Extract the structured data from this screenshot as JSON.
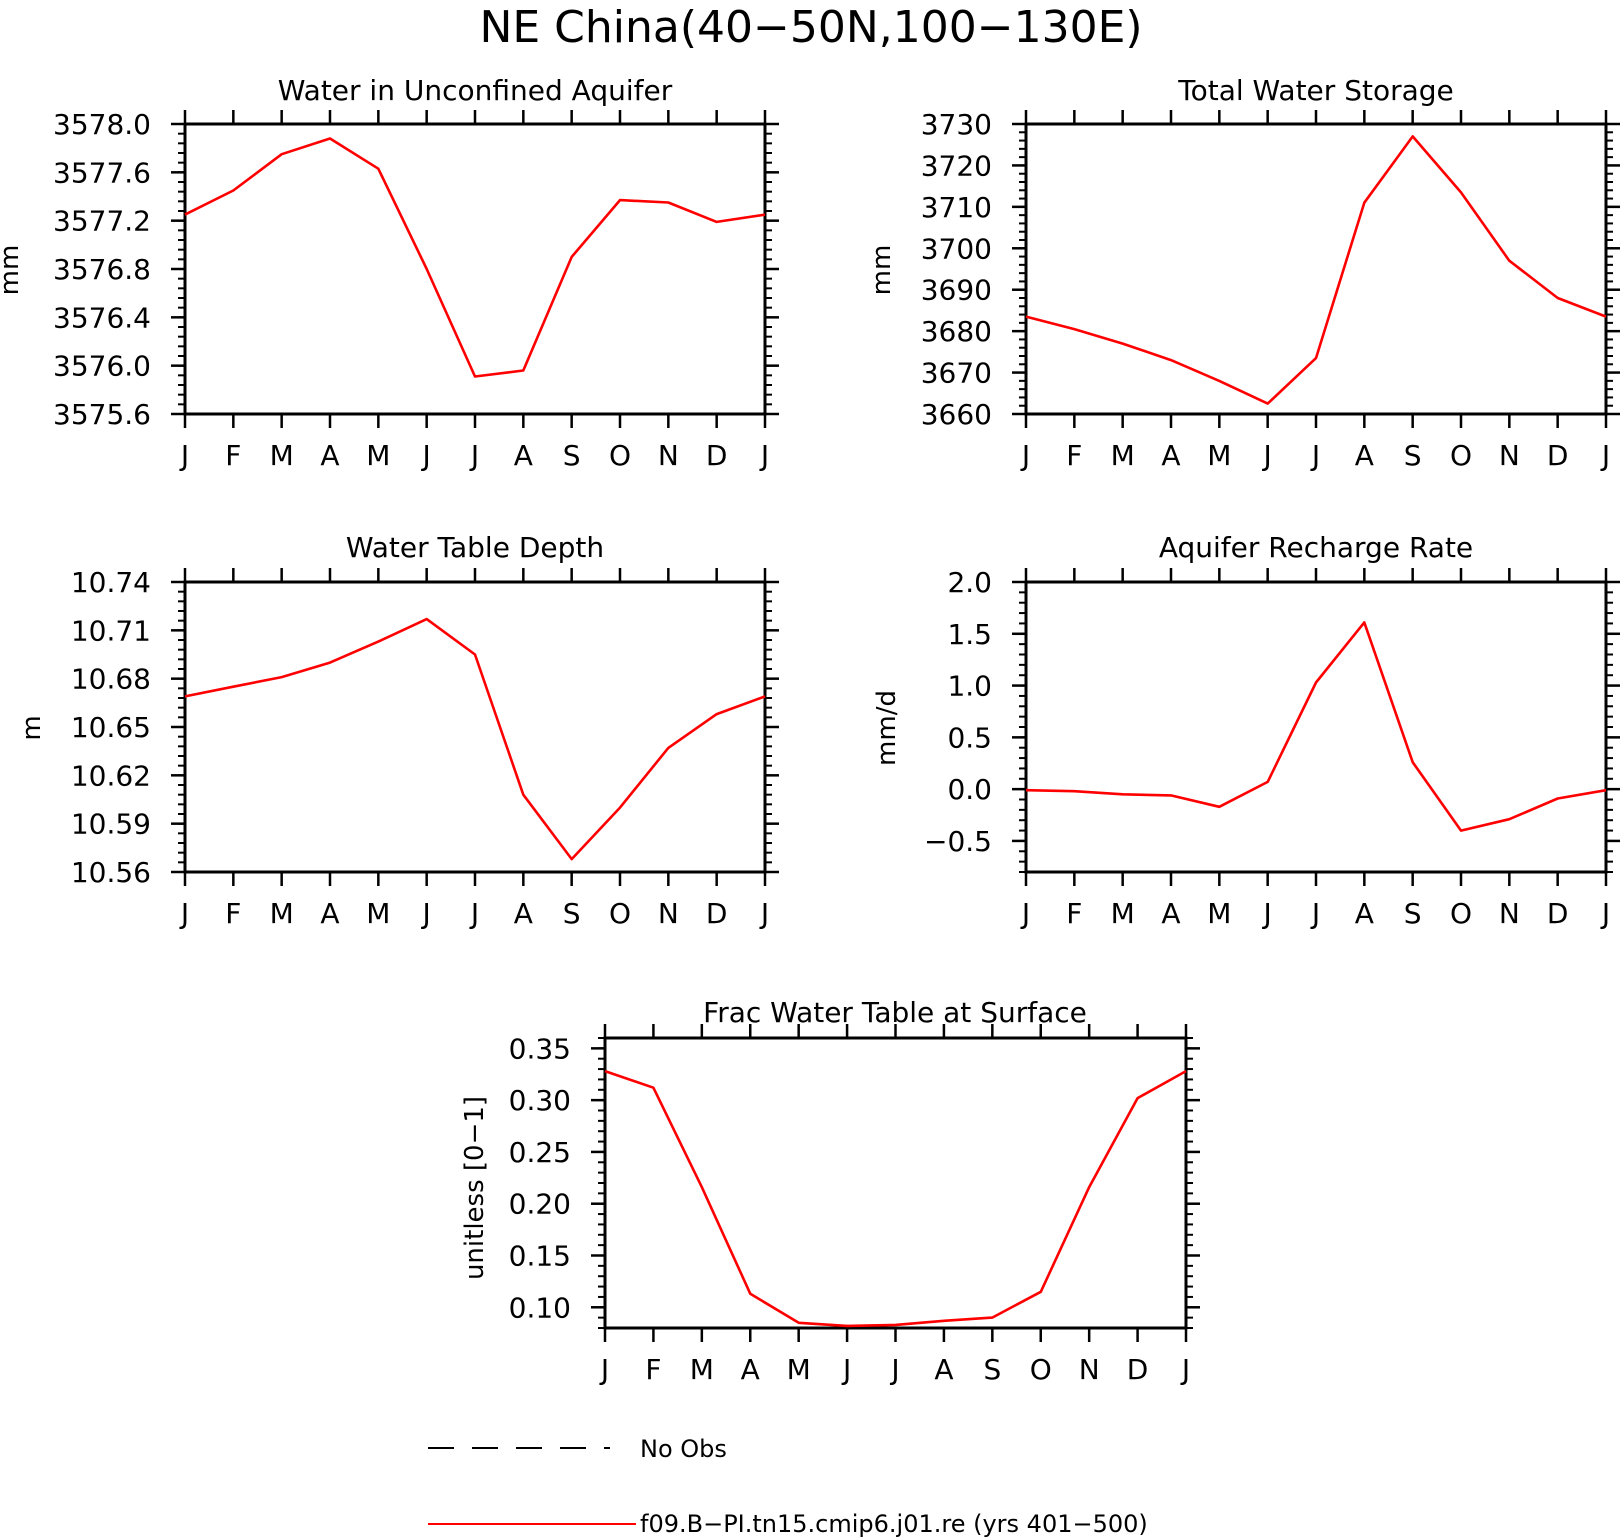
{
  "figure": {
    "title": "NE China(40−50N,100−130E)",
    "series_color": "#ff0000"
  },
  "legend": {
    "obs_label": "No Obs",
    "model_label": "f09.B−PI.tn15.cmip6.j01.re (yrs 401−500)"
  },
  "chart_data": [
    {
      "type": "line",
      "title": "Water in Unconfined Aquifer",
      "ylabel": "mm",
      "categories": [
        "J",
        "F",
        "M",
        "A",
        "M",
        "J",
        "J",
        "A",
        "S",
        "O",
        "N",
        "D",
        "J"
      ],
      "ylim": [
        3575.6,
        3578.0
      ],
      "yticks": [
        "3575.6",
        "3576.0",
        "3576.4",
        "3576.8",
        "3577.2",
        "3577.6",
        "3578.0"
      ],
      "series": [
        {
          "name": "f09.B−PI.tn15.cmip6.j01.re (yrs 401−500)",
          "values": [
            3577.25,
            3577.45,
            3577.75,
            3577.88,
            3577.63,
            3576.8,
            3575.91,
            3575.96,
            3576.9,
            3577.37,
            3577.35,
            3577.19,
            3577.25
          ]
        }
      ]
    },
    {
      "type": "line",
      "title": "Total Water Storage",
      "ylabel": "mm",
      "categories": [
        "J",
        "F",
        "M",
        "A",
        "M",
        "J",
        "J",
        "A",
        "S",
        "O",
        "N",
        "D",
        "J"
      ],
      "ylim": [
        3660,
        3730
      ],
      "yticks": [
        "3660",
        "3670",
        "3680",
        "3690",
        "3700",
        "3710",
        "3720",
        "3730"
      ],
      "series": [
        {
          "name": "f09.B−PI.tn15.cmip6.j01.re (yrs 401−500)",
          "values": [
            3683.5,
            3680.5,
            3677.0,
            3673.0,
            3668.0,
            3662.5,
            3673.5,
            3711.0,
            3727.0,
            3713.5,
            3697.0,
            3688.0,
            3683.5
          ]
        }
      ]
    },
    {
      "type": "line",
      "title": "Water Table Depth",
      "ylabel": "m",
      "categories": [
        "J",
        "F",
        "M",
        "A",
        "M",
        "J",
        "J",
        "A",
        "S",
        "O",
        "N",
        "D",
        "J"
      ],
      "ylim": [
        10.56,
        10.74
      ],
      "yticks": [
        "10.56",
        "10.59",
        "10.62",
        "10.65",
        "10.68",
        "10.71",
        "10.74"
      ],
      "series": [
        {
          "name": "f09.B−PI.tn15.cmip6.j01.re (yrs 401−500)",
          "values": [
            10.669,
            10.675,
            10.681,
            10.69,
            10.703,
            10.717,
            10.695,
            10.608,
            10.568,
            10.6,
            10.637,
            10.658,
            10.669
          ]
        }
      ]
    },
    {
      "type": "line",
      "title": "Aquifer Recharge Rate",
      "ylabel": "mm/d",
      "categories": [
        "J",
        "F",
        "M",
        "A",
        "M",
        "J",
        "J",
        "A",
        "S",
        "O",
        "N",
        "D",
        "J"
      ],
      "ylim": [
        -0.8,
        2.0
      ],
      "yticks": [
        "−0.5",
        "0.0",
        "0.5",
        "1.0",
        "1.5",
        "2.0"
      ],
      "ytick_values": [
        -0.5,
        0.0,
        0.5,
        1.0,
        1.5,
        2.0
      ],
      "series": [
        {
          "name": "f09.B−PI.tn15.cmip6.j01.re (yrs 401−500)",
          "values": [
            -0.01,
            -0.02,
            -0.05,
            -0.06,
            -0.17,
            0.07,
            1.03,
            1.61,
            0.26,
            -0.4,
            -0.29,
            -0.09,
            -0.01
          ]
        }
      ]
    },
    {
      "type": "line",
      "title": "Frac Water Table at Surface",
      "ylabel": "unitless [0−1]",
      "categories": [
        "J",
        "F",
        "M",
        "A",
        "M",
        "J",
        "J",
        "A",
        "S",
        "O",
        "N",
        "D",
        "J"
      ],
      "ylim": [
        0.08,
        0.36
      ],
      "yticks": [
        "0.10",
        "0.15",
        "0.20",
        "0.25",
        "0.30",
        "0.35"
      ],
      "ytick_values": [
        0.1,
        0.15,
        0.2,
        0.25,
        0.3,
        0.35
      ],
      "series": [
        {
          "name": "f09.B−PI.tn15.cmip6.j01.re (yrs 401−500)",
          "values": [
            0.328,
            0.312,
            0.216,
            0.113,
            0.085,
            0.082,
            0.083,
            0.087,
            0.09,
            0.115,
            0.216,
            0.302,
            0.328
          ]
        }
      ]
    }
  ]
}
